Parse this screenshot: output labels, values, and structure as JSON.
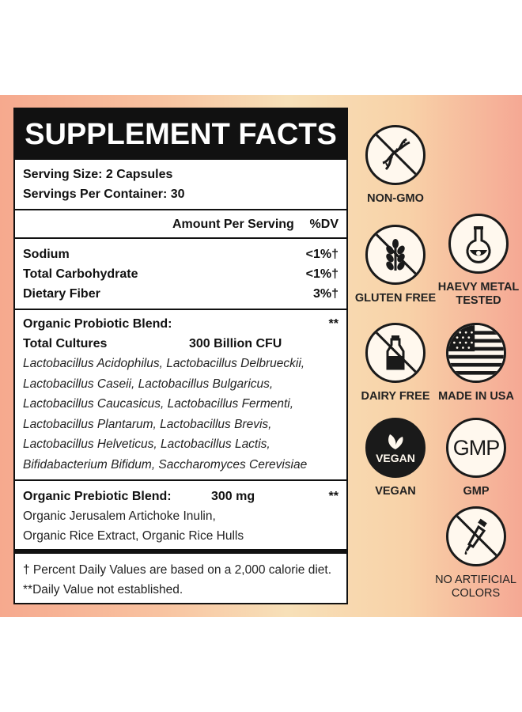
{
  "facts": {
    "title": "SUPPLEMENT FACTS",
    "serving_size": "Serving Size: 2 Capsules",
    "servings_per_container": "Servings Per Container: 30",
    "amount_header": "Amount Per Serving",
    "dv_header": "%DV",
    "nutrients": [
      {
        "name": "Sodium",
        "dv": "<1%†"
      },
      {
        "name": "Total Carbohydrate",
        "dv": "<1%†"
      },
      {
        "name": "Dietary Fiber",
        "dv": "3%†"
      }
    ],
    "probiotic": {
      "title": "Organic Probiotic Blend:",
      "mark": "**",
      "cultures_label": "Total Cultures",
      "cultures_amount": "300 Billion CFU",
      "strains": [
        "Lactobacillus Acidophilus, Lactobacillus Delbrueckii,",
        "Lactobacillus Caseii, Lactobacillus Bulgaricus,",
        "Lactobacillus Caucasicus, Lactobacillus Fermenti,",
        "Lactobacillus Plantarum, Lactobacillus Brevis,",
        "Lactobacillus Helveticus, Lactobacillus Lactis,",
        "Bifidabacterium Bifidum, Saccharomyces Cerevisiae"
      ]
    },
    "prebiotic": {
      "title": "Organic Prebiotic Blend:",
      "amount": "300 mg",
      "mark": "**",
      "ingredients": [
        "Organic Jerusalem Artichoke Inulin,",
        "Organic Rice Extract, Organic Rice Hulls"
      ]
    },
    "footnotes": [
      "† Percent Daily Values are based on a 2,000 calorie diet.",
      "**Daily Value not established."
    ]
  },
  "badges": {
    "non_gmo": {
      "label": "NON-GMO",
      "icon": "dna-icon"
    },
    "gluten_free": {
      "label": "GLUTEN FREE",
      "icon": "wheat-icon"
    },
    "heavy_metal": {
      "label_1": "HAEVY METAL",
      "label_2": "TESTED",
      "icon": "flask-icon"
    },
    "dairy_free": {
      "label": "DAIRY FREE",
      "icon": "milk-bottle-icon"
    },
    "made_in_usa": {
      "label": "MADE IN USA",
      "icon": "us-flag-icon"
    },
    "vegan": {
      "label": "VEGAN",
      "icon_text": "VEGAN",
      "icon": "leaf-icon"
    },
    "gmp": {
      "label": "GMP",
      "icon_text": "GMP",
      "icon": "gmp-icon"
    },
    "no_artificial_colors": {
      "label_1": "NO ARTIFICIAL",
      "label_2": "COLORS",
      "icon": "dropper-icon"
    }
  },
  "colors": {
    "band_left": "#f6a98e",
    "band_center": "#f7e0b8",
    "ink": "#111111"
  }
}
